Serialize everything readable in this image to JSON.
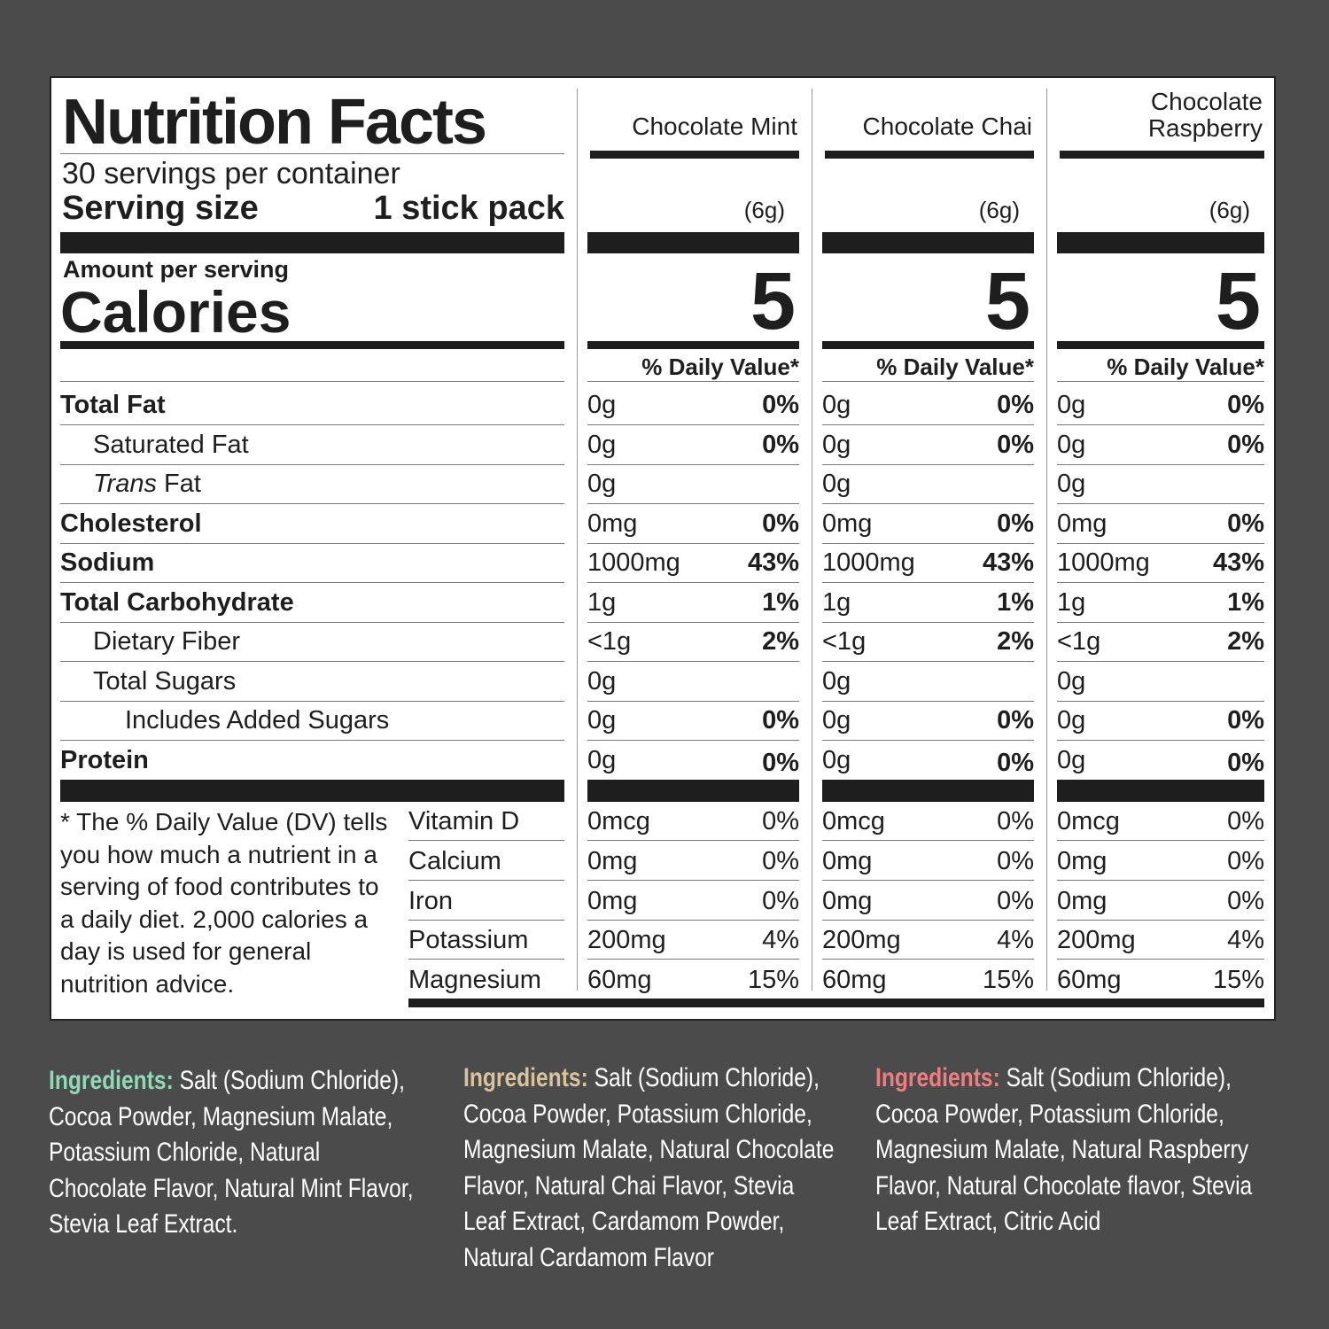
{
  "label": {
    "title": "Nutrition Facts",
    "servings_per_container": "30 servings per container",
    "serving_size_label": "Serving size",
    "serving_size_value": "1 stick pack",
    "amount_per_serving": "Amount per serving",
    "calories_label": "Calories",
    "footnote": "* The % Daily Value (DV) tells you how much a nutrient in a serving of food contributes to a daily diet. 2,000 calories a day is used for general nutrition advice."
  },
  "flavors": [
    {
      "name": "Chocolate Mint",
      "serving_weight": "(6g)",
      "calories": "5",
      "dv_header": "% Daily Value*"
    },
    {
      "name": "Chocolate Chai",
      "serving_weight": "(6g)",
      "calories": "5",
      "dv_header": "% Daily Value*"
    },
    {
      "name": "Chocolate Raspberry",
      "serving_weight": "(6g)",
      "calories": "5",
      "dv_header": "% Daily Value*"
    }
  ],
  "nutrients": [
    {
      "label": "Total Fat",
      "bold": true,
      "indent": 0,
      "values": [
        [
          "0g",
          "0%"
        ],
        [
          "0g",
          "0%"
        ],
        [
          "0g",
          "0%"
        ]
      ]
    },
    {
      "label": "Saturated Fat",
      "bold": false,
      "indent": 1,
      "values": [
        [
          "0g",
          "0%"
        ],
        [
          "0g",
          "0%"
        ],
        [
          "0g",
          "0%"
        ]
      ]
    },
    {
      "label": "Trans Fat",
      "italic_prefix": "Trans",
      "bold": false,
      "indent": 1,
      "values": [
        [
          "0g",
          ""
        ],
        [
          "0g",
          ""
        ],
        [
          "0g",
          ""
        ]
      ]
    },
    {
      "label": "Cholesterol",
      "bold": true,
      "indent": 0,
      "values": [
        [
          "0mg",
          "0%"
        ],
        [
          "0mg",
          "0%"
        ],
        [
          "0mg",
          "0%"
        ]
      ]
    },
    {
      "label": "Sodium",
      "bold": true,
      "indent": 0,
      "values": [
        [
          "1000mg",
          "43%"
        ],
        [
          "1000mg",
          "43%"
        ],
        [
          "1000mg",
          "43%"
        ]
      ]
    },
    {
      "label": "Total Carbohydrate",
      "bold": true,
      "indent": 0,
      "values": [
        [
          "1g",
          "1%"
        ],
        [
          "1g",
          "1%"
        ],
        [
          "1g",
          "1%"
        ]
      ]
    },
    {
      "label": "Dietary Fiber",
      "bold": false,
      "indent": 1,
      "values": [
        [
          "<1g",
          "2%"
        ],
        [
          "<1g",
          "2%"
        ],
        [
          "<1g",
          "2%"
        ]
      ]
    },
    {
      "label": "Total Sugars",
      "bold": false,
      "indent": 1,
      "values": [
        [
          "0g",
          ""
        ],
        [
          "0g",
          ""
        ],
        [
          "0g",
          ""
        ]
      ]
    },
    {
      "label": "Includes Added Sugars",
      "bold": false,
      "indent": 2,
      "values": [
        [
          "0g",
          "0%"
        ],
        [
          "0g",
          "0%"
        ],
        [
          "0g",
          "0%"
        ]
      ]
    },
    {
      "label": "Protein",
      "bold": true,
      "indent": 0,
      "values": [
        [
          "0g",
          "0%"
        ],
        [
          "0g",
          "0%"
        ],
        [
          "0g",
          "0%"
        ]
      ]
    }
  ],
  "vitamins": [
    {
      "label": "Vitamin D",
      "values": [
        [
          "0mcg",
          "0%"
        ],
        [
          "0mcg",
          "0%"
        ],
        [
          "0mcg",
          "0%"
        ]
      ]
    },
    {
      "label": "Calcium",
      "values": [
        [
          "0mg",
          "0%"
        ],
        [
          "0mg",
          "0%"
        ],
        [
          "0mg",
          "0%"
        ]
      ]
    },
    {
      "label": "Iron",
      "values": [
        [
          "0mg",
          "0%"
        ],
        [
          "0mg",
          "0%"
        ],
        [
          "0mg",
          "0%"
        ]
      ]
    },
    {
      "label": "Potassium",
      "values": [
        [
          "200mg",
          "4%"
        ],
        [
          "200mg",
          "4%"
        ],
        [
          "200mg",
          "4%"
        ]
      ]
    },
    {
      "label": "Magnesium",
      "values": [
        [
          "60mg",
          "15%"
        ],
        [
          "60mg",
          "15%"
        ],
        [
          "60mg",
          "15%"
        ]
      ]
    }
  ],
  "ingredients": [
    {
      "label": "Ingredients:",
      "text": "Salt (Sodium Chloride), Cocoa Powder, Magnesium Malate, Potassium Chloride, Natural Chocolate Flavor, Natural Mint Flavor, Stevia Leaf Extract.",
      "color": "#8fd9b6"
    },
    {
      "label": "Ingredients:",
      "text": "Salt (Sodium Chloride), Cocoa Powder, Potassium Chloride, Magnesium Malate, Natural Chocolate Flavor, Natural Chai Flavor, Stevia Leaf Extract, Cardamom Powder, Natural Cardamom Flavor",
      "color": "#d8c39b"
    },
    {
      "label": "Ingredients:",
      "text": "Salt (Sodium Chloride), Cocoa Powder, Potassium Chloride, Magnesium Malate, Natural Raspberry Flavor, Natural Chocolate flavor, Stevia Leaf Extract, Citric Acid",
      "color": "#f07e80"
    }
  ]
}
